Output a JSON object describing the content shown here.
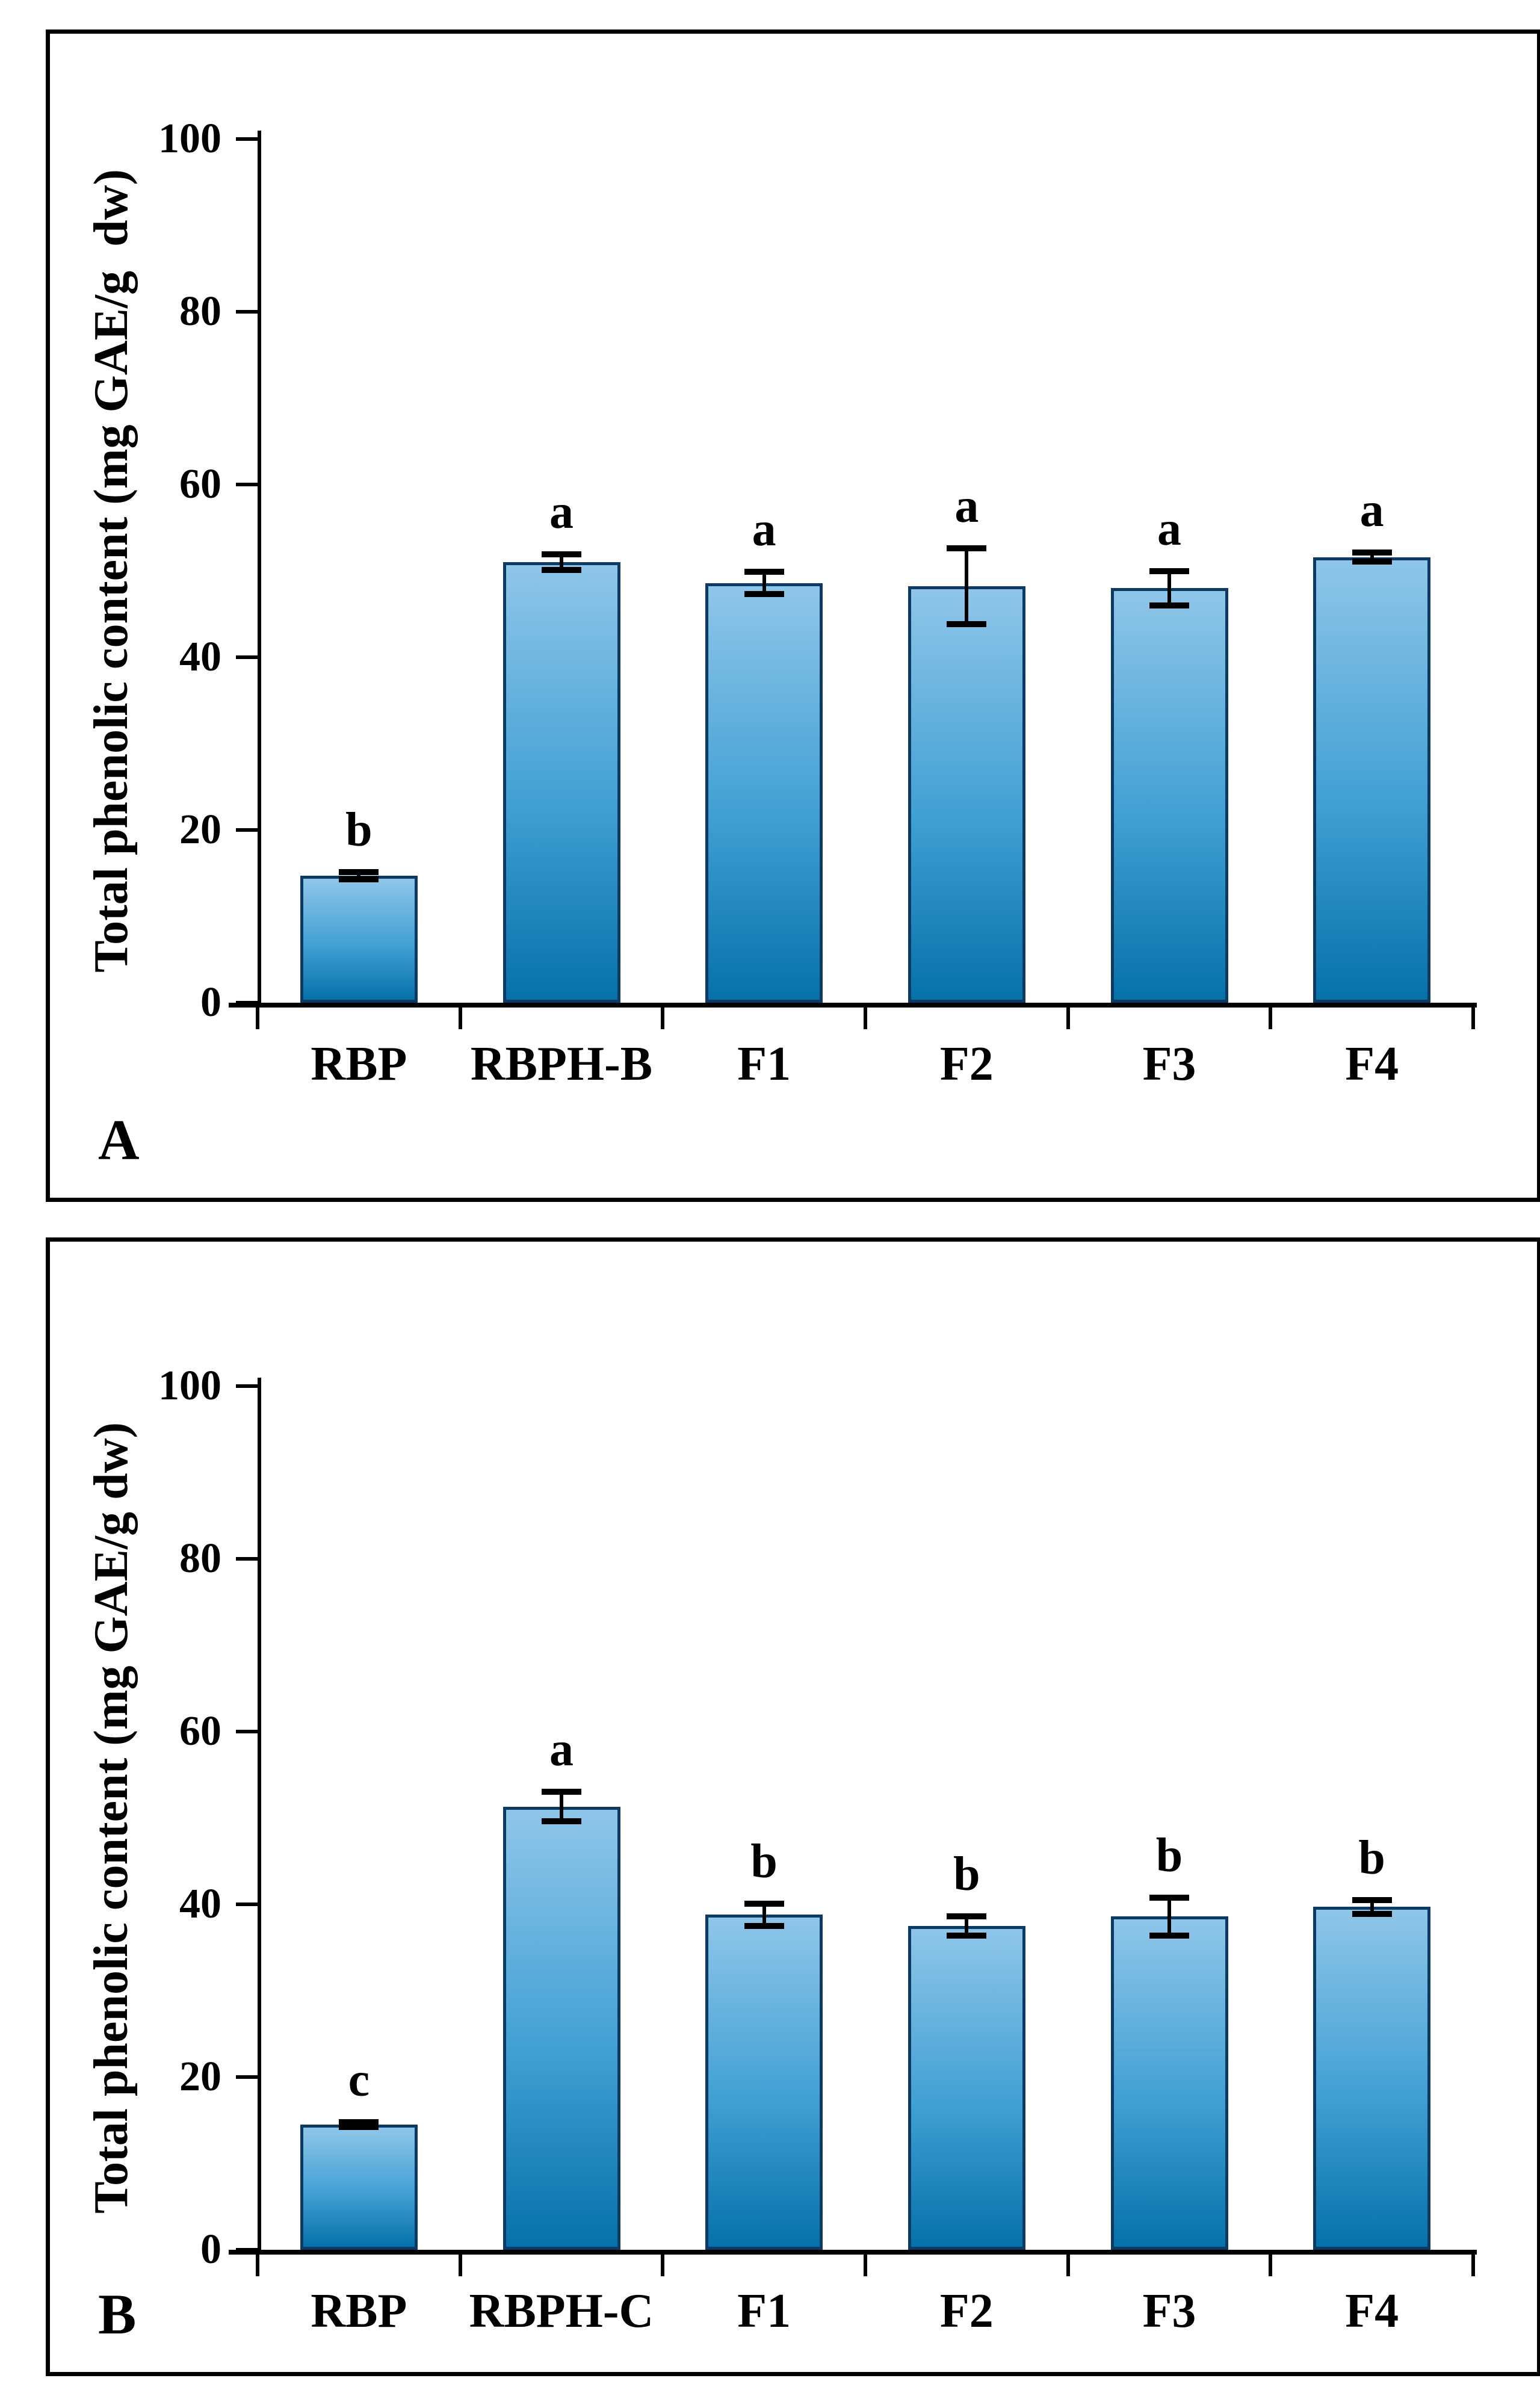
{
  "page": {
    "background": "#ffffff"
  },
  "chart_data": [
    {
      "type": "bar",
      "panel": "A",
      "ylabel": "Total phenolic content (mg GAE/g  dw)",
      "xlabel": "",
      "ylim": [
        0,
        100
      ],
      "yticks": [
        0,
        20,
        40,
        60,
        80,
        100
      ],
      "grid": false,
      "legend": null,
      "categories": [
        "RBP",
        "RBPH-B",
        "F1",
        "F2",
        "F3",
        "F4"
      ],
      "values": [
        14.7,
        51.0,
        48.6,
        48.2,
        48.0,
        51.6
      ],
      "errors": [
        0.4,
        0.9,
        1.3,
        4.4,
        2.0,
        0.5
      ],
      "sig_letters": [
        "b",
        "a",
        "a",
        "a",
        "a",
        "a"
      ]
    },
    {
      "type": "bar",
      "panel": "B",
      "ylabel": "Total phenolic content (mg GAE/g dw)",
      "xlabel": "",
      "ylim": [
        0,
        100
      ],
      "yticks": [
        0,
        20,
        40,
        60,
        80,
        100
      ],
      "grid": false,
      "legend": null,
      "categories": [
        "RBP",
        "RBPH-C",
        "F1",
        "F2",
        "F3",
        "F4"
      ],
      "values": [
        14.5,
        51.3,
        38.8,
        37.5,
        38.6,
        39.7
      ],
      "errors": [
        0.3,
        1.7,
        1.3,
        1.1,
        2.2,
        0.8
      ],
      "sig_letters": [
        "c",
        "a",
        "b",
        "b",
        "b",
        "b"
      ]
    }
  ],
  "style": {
    "bar_fill_top": "#8fc6e9",
    "bar_fill_mid": "#41a0d4",
    "bar_fill_bottom": "#0671a9",
    "bar_border": "#0d3a63",
    "error_color": "#000000",
    "axis_color": "#000000"
  }
}
